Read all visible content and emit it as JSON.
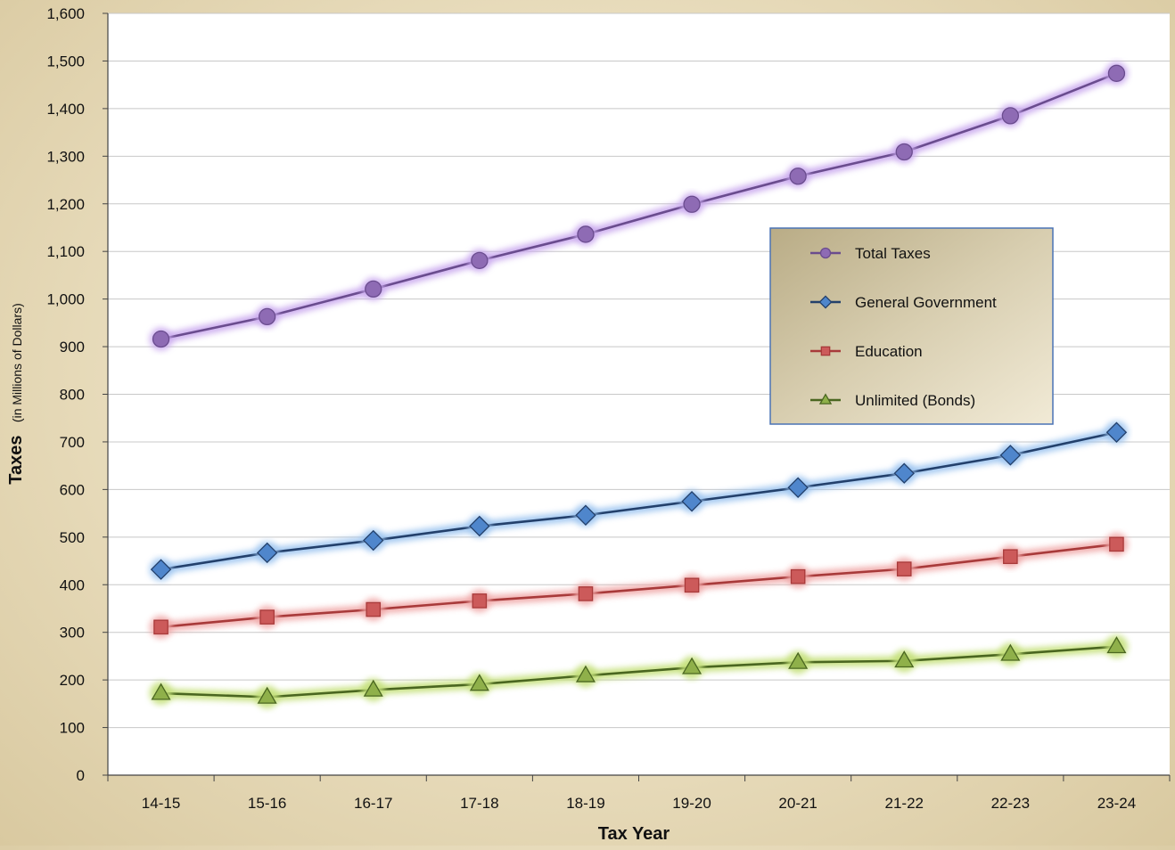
{
  "chart_data": {
    "type": "line",
    "title": "",
    "xlabel": "Tax Year",
    "ylabel": "Taxes",
    "ylabel_sub": "(in Millions of Dollars)",
    "ylim": [
      0,
      1600
    ],
    "yticks": [
      0,
      100,
      200,
      300,
      400,
      500,
      600,
      700,
      800,
      900,
      1000,
      1100,
      1200,
      1300,
      1400,
      1500,
      1600
    ],
    "ytick_labels": [
      "0",
      "100",
      "200",
      "300",
      "400",
      "500",
      "600",
      "700",
      "800",
      "900",
      "1,000",
      "1,100",
      "1,200",
      "1,300",
      "1,400",
      "1,500",
      "1,600"
    ],
    "grid": true,
    "legend_position": "right-center",
    "categories": [
      "14-15",
      "15-16",
      "16-17",
      "17-18",
      "18-19",
      "19-20",
      "20-21",
      "21-22",
      "22-23",
      "23-24"
    ],
    "series": [
      {
        "name": "Total Taxes",
        "marker": "circle",
        "color": "#8e6bb4",
        "line_color": "#6a4c8e",
        "glow": "#c9a8ee",
        "values": [
          916,
          963,
          1021,
          1081,
          1136,
          1199,
          1258,
          1309,
          1385,
          1474
        ]
      },
      {
        "name": "General Government",
        "marker": "diamond",
        "color": "#4f86cc",
        "line_color": "#23406b",
        "glow": "#9cc4f0",
        "values": [
          432,
          467,
          493,
          523,
          546,
          575,
          604,
          634,
          672,
          720
        ]
      },
      {
        "name": "Education",
        "marker": "square",
        "color": "#cc5a5a",
        "line_color": "#a83a3a",
        "glow": "#f0a8a8",
        "values": [
          311,
          332,
          348,
          366,
          381,
          399,
          417,
          433,
          459,
          485
        ]
      },
      {
        "name": "Unlimited (Bonds)",
        "marker": "triangle",
        "color": "#8fb04a",
        "line_color": "#4a6620",
        "glow": "#c4e07a",
        "values": [
          172,
          164,
          179,
          191,
          209,
          226,
          237,
          240,
          254,
          270
        ]
      }
    ]
  }
}
